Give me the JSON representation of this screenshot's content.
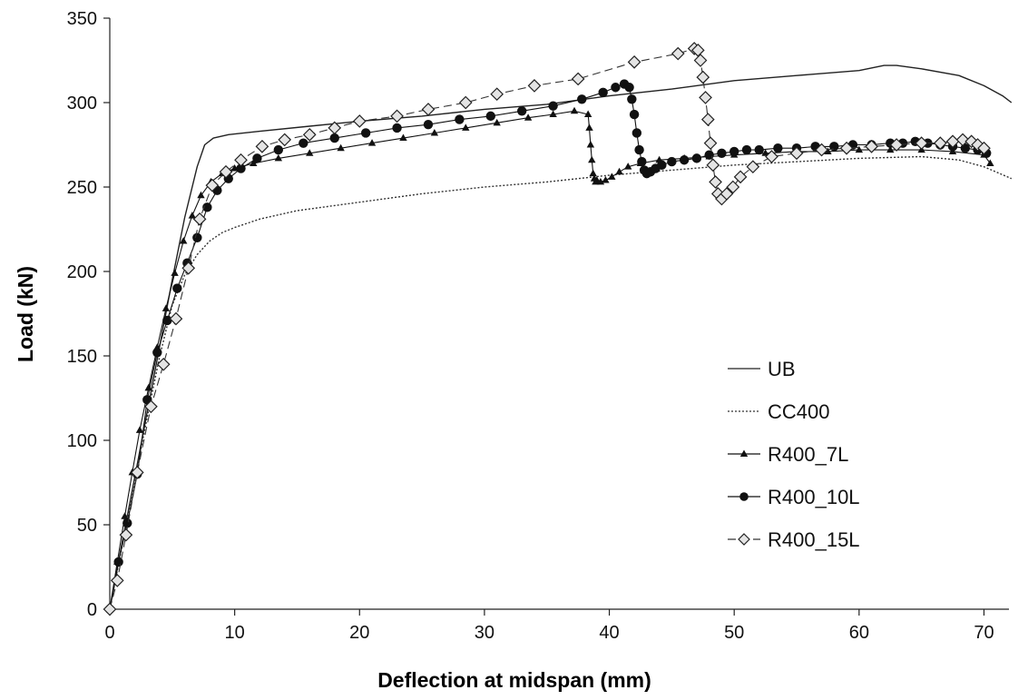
{
  "chart_data": {
    "type": "line",
    "title": "",
    "xlabel": "Deflection at midspan (mm)",
    "ylabel": "Load (kN)",
    "xlim": [
      0,
      72
    ],
    "ylim": [
      0,
      350
    ],
    "xticks": [
      0,
      10,
      20,
      30,
      40,
      50,
      60,
      70
    ],
    "yticks": [
      0,
      50,
      100,
      150,
      200,
      250,
      300,
      350
    ],
    "grid": false,
    "legend_position": "right-middle",
    "series": [
      {
        "name": "UB",
        "color": "#222222",
        "dash": "solid",
        "marker": "none",
        "x": [
          0,
          1,
          2,
          3,
          4,
          5,
          6,
          7,
          7.6,
          8.3,
          9.5,
          12,
          16,
          20,
          25,
          30,
          35,
          40,
          45,
          50,
          55,
          60,
          62,
          63,
          65,
          68,
          70,
          71.5,
          72.2
        ],
        "y": [
          0,
          40,
          78,
          117,
          156,
          195,
          232,
          262,
          275,
          279,
          281,
          283,
          286,
          289,
          292,
          296,
          299,
          304,
          308,
          313,
          316,
          319,
          322,
          322,
          320,
          316,
          310,
          304,
          300
        ]
      },
      {
        "name": "CC400",
        "color": "#333333",
        "dash": "dotted",
        "marker": "none",
        "x": [
          0,
          1,
          2,
          3,
          4,
          5,
          6,
          7,
          8,
          9,
          10,
          12,
          15,
          20,
          25,
          30,
          35,
          40,
          45,
          50,
          55,
          60,
          65,
          68,
          70,
          72.2
        ],
        "y": [
          0,
          38,
          76,
          114,
          150,
          180,
          198,
          210,
          218,
          223,
          226,
          231,
          236,
          241,
          246,
          250,
          253,
          257,
          260,
          263,
          265,
          267,
          268,
          266,
          262,
          255
        ]
      },
      {
        "name": "R400_7L",
        "color": "#111111",
        "dash": "solid",
        "marker": "triangle",
        "x": [
          0,
          0.6,
          1.2,
          1.8,
          2.4,
          3.1,
          3.8,
          4.5,
          5.2,
          5.9,
          6.6,
          7.3,
          8.1,
          9.0,
          10.0,
          11.5,
          13.5,
          16,
          18.5,
          21,
          23.5,
          26,
          28.5,
          31,
          33.5,
          35.5,
          37.2,
          38.3,
          38.4,
          38.5,
          38.6,
          38.7,
          38.8,
          38.9,
          39.0,
          39.3,
          39.7,
          40.2,
          40.8,
          41.5,
          42.5,
          44,
          46,
          48,
          50,
          52.5,
          55,
          57.5,
          60,
          62.5,
          65,
          67.5,
          70,
          70.5
        ],
        "y": [
          0,
          28,
          55,
          81,
          106,
          131,
          155,
          178,
          199,
          218,
          233,
          245,
          253,
          258,
          261,
          264,
          267,
          270,
          273,
          276,
          279,
          282,
          285,
          288,
          291,
          293,
          295,
          293,
          285,
          275,
          266,
          258,
          255,
          253,
          254,
          253,
          254,
          256,
          259,
          262,
          264,
          266,
          267,
          268,
          269,
          270,
          271,
          271,
          272,
          272,
          272,
          271,
          269,
          264
        ],
        "marker_size": 6
      },
      {
        "name": "R400_10L",
        "color": "#111111",
        "dash": "solid",
        "marker": "circle",
        "x": [
          0,
          0.7,
          1.4,
          2.2,
          3.0,
          3.8,
          4.6,
          5.4,
          6.2,
          7.0,
          7.8,
          8.6,
          9.5,
          10.5,
          11.8,
          13.5,
          15.5,
          18,
          20.5,
          23,
          25.5,
          28,
          30.5,
          33,
          35.5,
          37.8,
          39.5,
          40.5,
          41.2,
          41.6,
          41.8,
          42.0,
          42.2,
          42.4,
          42.6,
          42.8,
          43.0,
          43.3,
          43.7,
          44.2,
          45,
          46,
          47,
          48,
          49,
          50,
          51,
          52,
          53.5,
          55,
          56.5,
          58,
          59.5,
          61,
          62.5,
          63.5,
          64.5,
          65.5,
          66.5,
          67.5,
          68.5,
          69.5,
          70.2
        ],
        "y": [
          0,
          28,
          51,
          80,
          124,
          152,
          171,
          190,
          205,
          220,
          238,
          248,
          255,
          261,
          267,
          272,
          276,
          279,
          282,
          285,
          287,
          290,
          292,
          295,
          298,
          302,
          306,
          309,
          311,
          309,
          302,
          293,
          282,
          272,
          265,
          260,
          258,
          259,
          261,
          263,
          265,
          266,
          267,
          269,
          270,
          271,
          272,
          272,
          273,
          273,
          274,
          274,
          275,
          275,
          276,
          276,
          277,
          276,
          275,
          274,
          273,
          272,
          270
        ],
        "marker_size": 6.5
      },
      {
        "name": "R400_15L",
        "color": "#333333",
        "dash": "dashed",
        "marker": "diamond",
        "x": [
          0,
          0.6,
          1.3,
          2.2,
          3.3,
          4.3,
          5.3,
          6.3,
          7.2,
          8.2,
          9.3,
          10.5,
          12.2,
          14,
          16,
          18,
          20,
          23,
          25.5,
          28.5,
          31,
          34,
          37.5,
          42,
          45.5,
          46.8,
          47.1,
          47.3,
          47.5,
          47.7,
          47.9,
          48.1,
          48.3,
          48.5,
          48.7,
          49.0,
          49.4,
          49.9,
          50.5,
          51.5,
          53,
          55,
          57,
          59,
          61,
          63,
          65,
          66.5,
          67.5,
          68.3,
          69,
          69.5,
          70
        ],
        "y": [
          0,
          17,
          44,
          81,
          120,
          145,
          172,
          202,
          231,
          251,
          259,
          266,
          274,
          278,
          281,
          285,
          289,
          292,
          296,
          300,
          305,
          310,
          314,
          324,
          329,
          332,
          331,
          325,
          315,
          303,
          290,
          276,
          263,
          253,
          246,
          243,
          246,
          250,
          256,
          262,
          268,
          270,
          272,
          273,
          274,
          275,
          276,
          276,
          277,
          278,
          277,
          275,
          273
        ],
        "marker_size": 6.5
      }
    ]
  }
}
